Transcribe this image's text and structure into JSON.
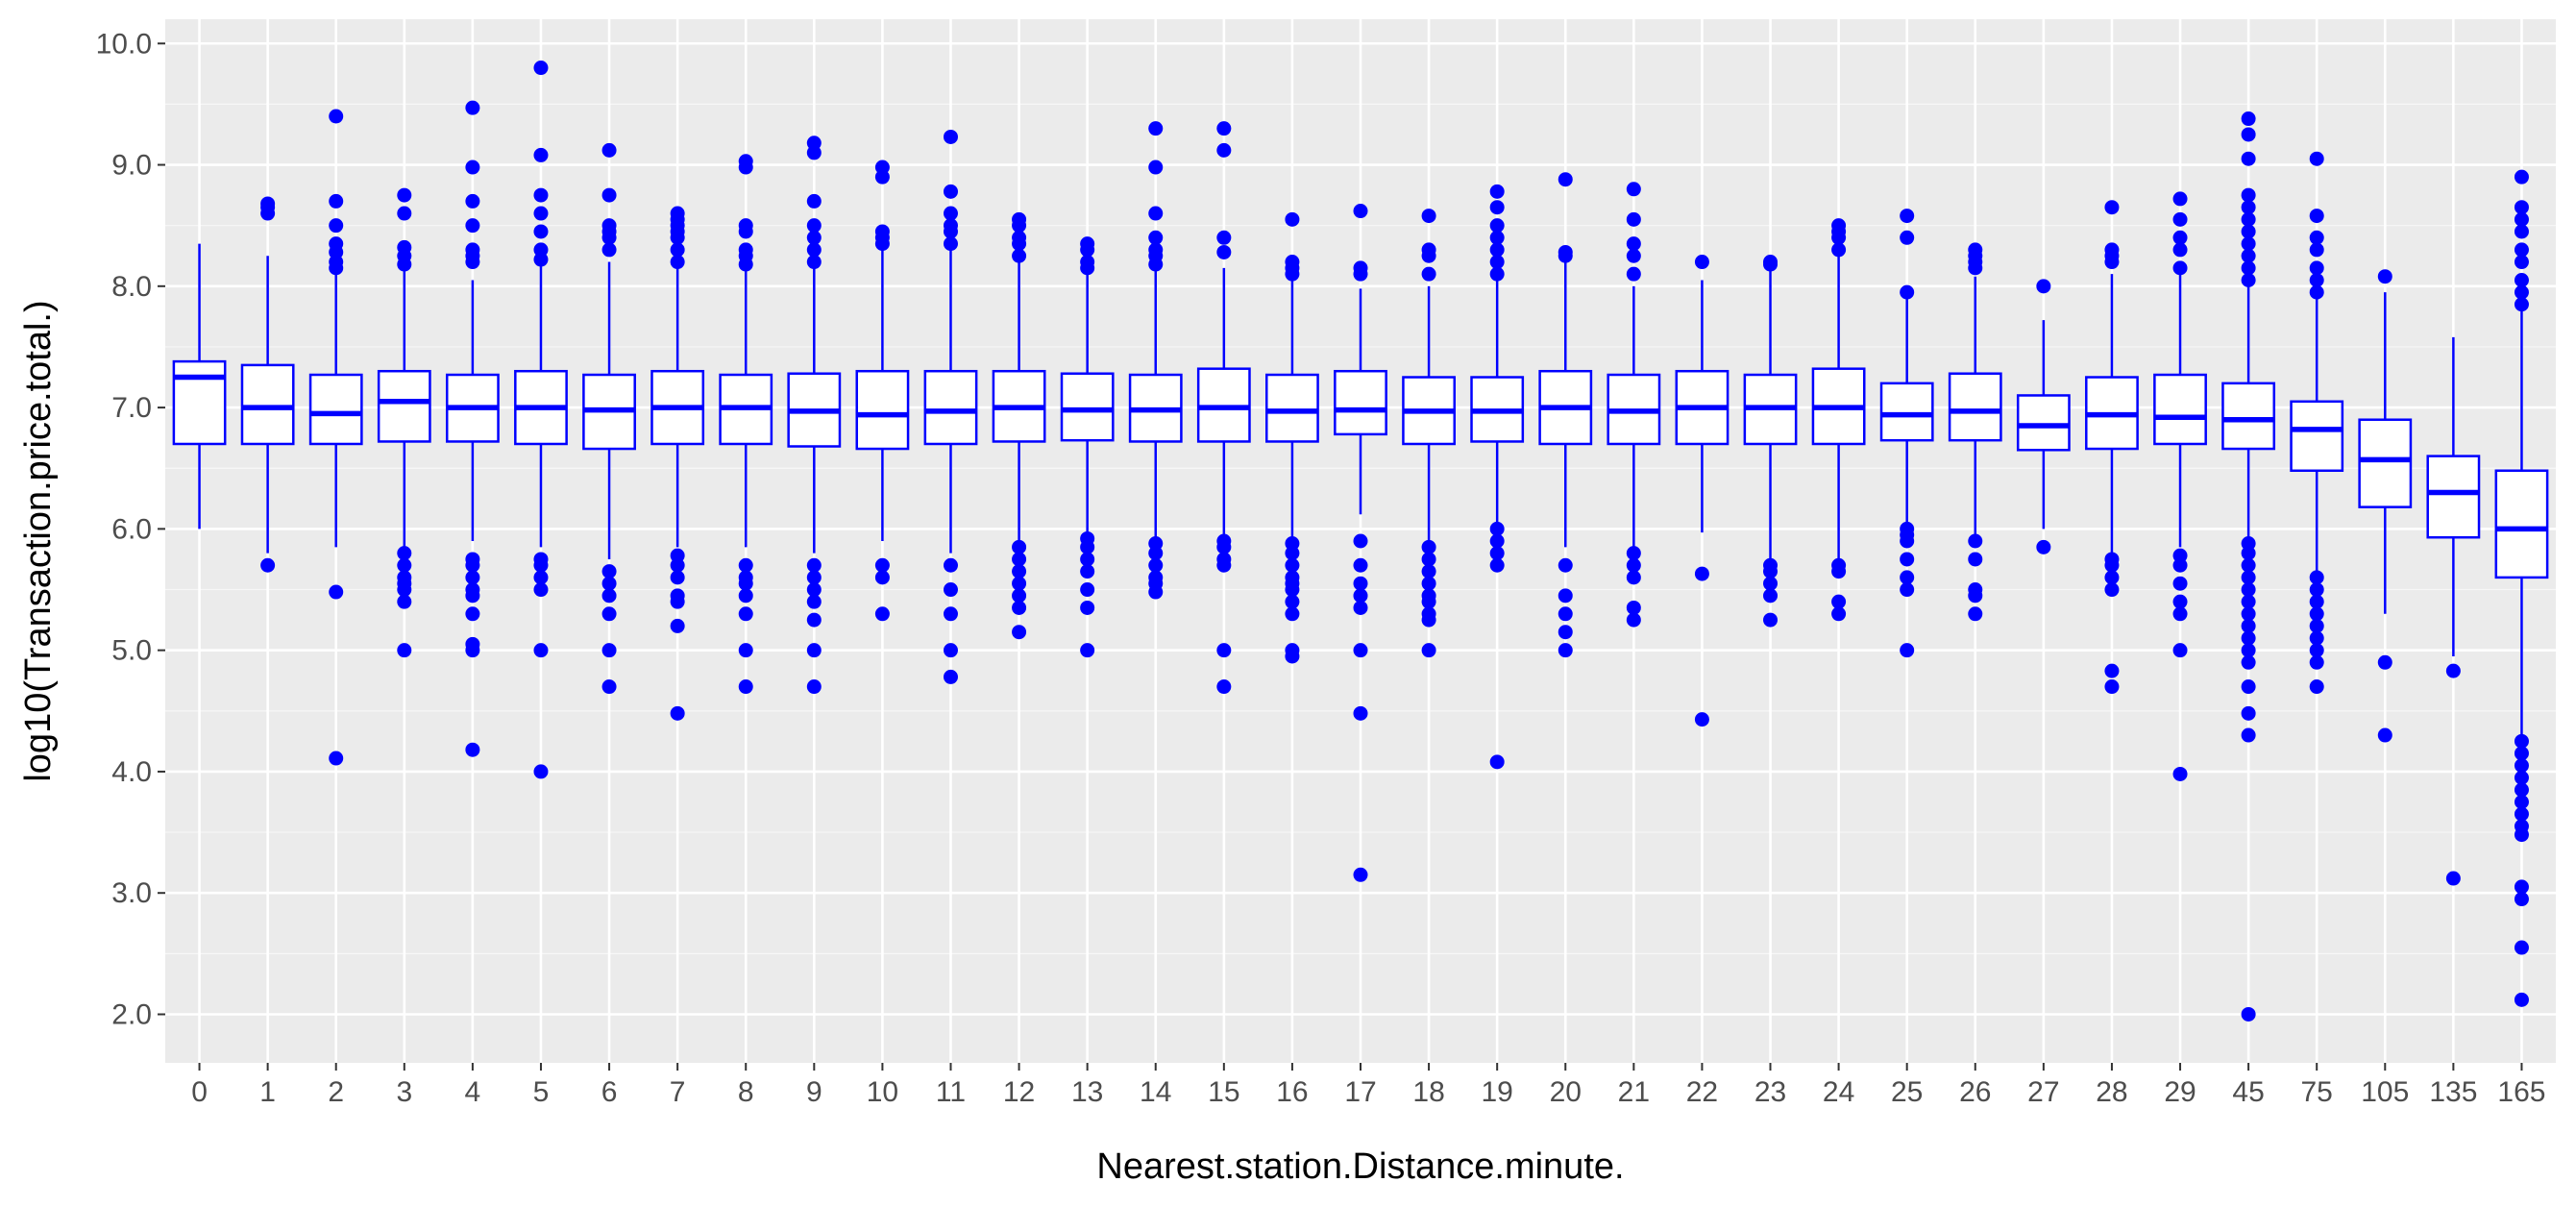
{
  "chart_data": {
    "type": "boxplot",
    "title": "",
    "xlabel": "Nearest.station.Distance.minute.",
    "ylabel": "log10(Transaction.price.total.)",
    "ylim": [
      1.6,
      10.2
    ],
    "yticks": [
      2.0,
      3.0,
      4.0,
      5.0,
      6.0,
      7.0,
      8.0,
      9.0,
      10.0
    ],
    "ytick_labels": [
      "2.0",
      "3.0",
      "4.0",
      "5.0",
      "6.0",
      "7.0",
      "8.0",
      "9.0",
      "10.0"
    ],
    "grid": true,
    "legend": "none",
    "colors": {
      "box": "#0000ff",
      "panel": "#ebebeb",
      "grid_major": "#ffffff",
      "grid_minor": "#f5f5f5",
      "tick_text": "#4d4d4d",
      "axis_text": "#000000"
    },
    "categories": [
      "0",
      "1",
      "2",
      "3",
      "4",
      "5",
      "6",
      "7",
      "8",
      "9",
      "10",
      "11",
      "12",
      "13",
      "14",
      "15",
      "16",
      "17",
      "18",
      "19",
      "20",
      "21",
      "22",
      "23",
      "24",
      "25",
      "26",
      "27",
      "28",
      "29",
      "45",
      "75",
      "105",
      "135",
      "165"
    ],
    "boxes": [
      {
        "q1": 6.7,
        "median": 7.25,
        "q3": 7.38,
        "whisker_low": 6.0,
        "whisker_high": 8.35,
        "outliers": []
      },
      {
        "q1": 6.7,
        "median": 7.0,
        "q3": 7.35,
        "whisker_low": 5.8,
        "whisker_high": 8.25,
        "outliers": [
          5.7,
          8.6,
          8.65,
          8.68
        ]
      },
      {
        "q1": 6.7,
        "median": 6.95,
        "q3": 7.27,
        "whisker_low": 5.85,
        "whisker_high": 8.1,
        "outliers": [
          4.11,
          5.48,
          8.15,
          8.2,
          8.28,
          8.35,
          8.5,
          8.7,
          9.4
        ]
      },
      {
        "q1": 6.72,
        "median": 7.05,
        "q3": 7.3,
        "whisker_low": 5.85,
        "whisker_high": 8.15,
        "outliers": [
          5.0,
          5.4,
          5.5,
          5.55,
          5.6,
          5.7,
          5.8,
          8.18,
          8.25,
          8.32,
          8.6,
          8.75
        ]
      },
      {
        "q1": 6.72,
        "median": 7.0,
        "q3": 7.27,
        "whisker_low": 5.9,
        "whisker_high": 8.05,
        "outliers": [
          4.18,
          5.0,
          5.05,
          5.3,
          5.45,
          5.5,
          5.6,
          5.7,
          5.75,
          8.2,
          8.25,
          8.3,
          8.5,
          8.7,
          8.98,
          9.47
        ]
      },
      {
        "q1": 6.7,
        "median": 7.0,
        "q3": 7.3,
        "whisker_low": 5.85,
        "whisker_high": 8.2,
        "outliers": [
          4.0,
          5.0,
          5.5,
          5.6,
          5.7,
          5.75,
          8.22,
          8.3,
          8.45,
          8.6,
          8.75,
          9.08,
          9.8
        ]
      },
      {
        "q1": 6.66,
        "median": 6.98,
        "q3": 7.27,
        "whisker_low": 5.75,
        "whisker_high": 8.2,
        "outliers": [
          4.7,
          5.0,
          5.3,
          5.45,
          5.55,
          5.65,
          8.3,
          8.4,
          8.45,
          8.5,
          8.75,
          9.12
        ]
      },
      {
        "q1": 6.7,
        "median": 7.0,
        "q3": 7.3,
        "whisker_low": 5.85,
        "whisker_high": 8.2,
        "outliers": [
          4.48,
          5.2,
          5.4,
          5.45,
          5.6,
          5.7,
          5.78,
          8.2,
          8.3,
          8.4,
          8.45,
          8.5,
          8.55,
          8.6
        ]
      },
      {
        "q1": 6.7,
        "median": 7.0,
        "q3": 7.27,
        "whisker_low": 5.85,
        "whisker_high": 8.15,
        "outliers": [
          4.7,
          5.0,
          5.3,
          5.45,
          5.55,
          5.6,
          5.7,
          8.18,
          8.25,
          8.3,
          8.45,
          8.5,
          8.98,
          9.03
        ]
      },
      {
        "q1": 6.68,
        "median": 6.97,
        "q3": 7.28,
        "whisker_low": 5.8,
        "whisker_high": 8.15,
        "outliers": [
          4.7,
          5.0,
          5.25,
          5.4,
          5.5,
          5.6,
          5.7,
          8.2,
          8.3,
          8.4,
          8.5,
          8.7,
          9.1,
          9.18
        ]
      },
      {
        "q1": 6.66,
        "median": 6.94,
        "q3": 7.3,
        "whisker_low": 5.9,
        "whisker_high": 8.3,
        "outliers": [
          5.3,
          5.6,
          5.7,
          8.35,
          8.4,
          8.45,
          8.9,
          8.98
        ]
      },
      {
        "q1": 6.7,
        "median": 6.97,
        "q3": 7.3,
        "whisker_low": 5.8,
        "whisker_high": 8.3,
        "outliers": [
          4.78,
          5.0,
          5.3,
          5.5,
          5.7,
          8.35,
          8.45,
          8.5,
          8.6,
          8.78,
          9.23
        ]
      },
      {
        "q1": 6.72,
        "median": 7.0,
        "q3": 7.3,
        "whisker_low": 5.85,
        "whisker_high": 8.2,
        "outliers": [
          5.15,
          5.35,
          5.45,
          5.55,
          5.65,
          5.75,
          5.85,
          8.25,
          8.35,
          8.4,
          8.5,
          8.55
        ]
      },
      {
        "q1": 6.73,
        "median": 6.98,
        "q3": 7.28,
        "whisker_low": 5.95,
        "whisker_high": 8.1,
        "outliers": [
          5.0,
          5.35,
          5.5,
          5.65,
          5.75,
          5.85,
          5.92,
          8.15,
          8.2,
          8.3,
          8.35
        ]
      },
      {
        "q1": 6.72,
        "median": 6.98,
        "q3": 7.27,
        "whisker_low": 5.9,
        "whisker_high": 8.15,
        "outliers": [
          5.48,
          5.55,
          5.6,
          5.7,
          5.8,
          5.88,
          8.18,
          8.25,
          8.3,
          8.4,
          8.6,
          8.98,
          9.3
        ]
      },
      {
        "q1": 6.72,
        "median": 7.0,
        "q3": 7.32,
        "whisker_low": 5.92,
        "whisker_high": 8.15,
        "outliers": [
          4.7,
          5.0,
          5.7,
          5.75,
          5.85,
          5.9,
          8.28,
          8.4,
          9.12,
          9.3
        ]
      },
      {
        "q1": 6.72,
        "median": 6.97,
        "q3": 7.27,
        "whisker_low": 5.9,
        "whisker_high": 8.05,
        "outliers": [
          4.95,
          5.0,
          5.3,
          5.4,
          5.5,
          5.55,
          5.6,
          5.7,
          5.8,
          5.88,
          8.1,
          8.15,
          8.2,
          8.55
        ]
      },
      {
        "q1": 6.78,
        "median": 6.98,
        "q3": 7.3,
        "whisker_low": 6.12,
        "whisker_high": 7.98,
        "outliers": [
          3.15,
          4.48,
          5.0,
          5.35,
          5.45,
          5.55,
          5.7,
          5.9,
          8.1,
          8.15,
          8.62
        ]
      },
      {
        "q1": 6.7,
        "median": 6.97,
        "q3": 7.25,
        "whisker_low": 5.9,
        "whisker_high": 8.0,
        "outliers": [
          5.0,
          5.25,
          5.3,
          5.4,
          5.45,
          5.55,
          5.65,
          5.75,
          5.85,
          8.1,
          8.25,
          8.3,
          8.58
        ]
      },
      {
        "q1": 6.72,
        "median": 6.97,
        "q3": 7.25,
        "whisker_low": 6.0,
        "whisker_high": 8.05,
        "outliers": [
          4.08,
          5.7,
          5.8,
          5.9,
          6.0,
          8.1,
          8.2,
          8.3,
          8.4,
          8.5,
          8.65,
          8.78
        ]
      },
      {
        "q1": 6.7,
        "median": 7.0,
        "q3": 7.3,
        "whisker_low": 5.85,
        "whisker_high": 8.2,
        "outliers": [
          5.0,
          5.15,
          5.3,
          5.45,
          5.7,
          8.25,
          8.28,
          8.88
        ]
      },
      {
        "q1": 6.7,
        "median": 6.97,
        "q3": 7.27,
        "whisker_low": 5.85,
        "whisker_high": 8.0,
        "outliers": [
          5.25,
          5.35,
          5.6,
          5.7,
          5.8,
          8.1,
          8.25,
          8.35,
          8.55,
          8.8
        ]
      },
      {
        "q1": 6.7,
        "median": 7.0,
        "q3": 7.3,
        "whisker_low": 5.97,
        "whisker_high": 8.05,
        "outliers": [
          4.43,
          5.63,
          8.2
        ]
      },
      {
        "q1": 6.7,
        "median": 7.0,
        "q3": 7.27,
        "whisker_low": 5.75,
        "whisker_high": 8.15,
        "outliers": [
          5.25,
          5.45,
          5.55,
          5.65,
          5.7,
          8.18,
          8.2
        ]
      },
      {
        "q1": 6.7,
        "median": 7.0,
        "q3": 7.32,
        "whisker_low": 5.75,
        "whisker_high": 8.25,
        "outliers": [
          5.3,
          5.4,
          5.65,
          5.7,
          8.3,
          8.4,
          8.45,
          8.5
        ]
      },
      {
        "q1": 6.73,
        "median": 6.94,
        "q3": 7.2,
        "whisker_low": 6.05,
        "whisker_high": 7.9,
        "outliers": [
          5.0,
          5.5,
          5.6,
          5.75,
          5.9,
          5.95,
          6.0,
          7.95,
          8.4,
          8.58
        ]
      },
      {
        "q1": 6.73,
        "median": 6.97,
        "q3": 7.28,
        "whisker_low": 5.95,
        "whisker_high": 8.08,
        "outliers": [
          5.3,
          5.45,
          5.5,
          5.75,
          5.9,
          8.15,
          8.2,
          8.25,
          8.3
        ]
      },
      {
        "q1": 6.65,
        "median": 6.85,
        "q3": 7.1,
        "whisker_low": 6.0,
        "whisker_high": 7.72,
        "outliers": [
          5.85,
          8.0
        ]
      },
      {
        "q1": 6.66,
        "median": 6.94,
        "q3": 7.25,
        "whisker_low": 5.8,
        "whisker_high": 8.1,
        "outliers": [
          4.7,
          4.83,
          5.5,
          5.6,
          5.7,
          5.75,
          8.2,
          8.25,
          8.3,
          8.65
        ]
      },
      {
        "q1": 6.7,
        "median": 6.92,
        "q3": 7.27,
        "whisker_low": 5.85,
        "whisker_high": 8.1,
        "outliers": [
          3.98,
          5.0,
          5.3,
          5.4,
          5.55,
          5.7,
          5.78,
          8.15,
          8.3,
          8.4,
          8.55,
          8.72
        ]
      },
      {
        "q1": 6.66,
        "median": 6.9,
        "q3": 7.2,
        "whisker_low": 5.9,
        "whisker_high": 8.0,
        "outliers": [
          2.0,
          4.3,
          4.48,
          4.7,
          4.9,
          5.0,
          5.1,
          5.2,
          5.3,
          5.4,
          5.5,
          5.6,
          5.7,
          5.8,
          5.88,
          8.05,
          8.15,
          8.25,
          8.35,
          8.45,
          8.55,
          8.65,
          8.75,
          9.05,
          9.25,
          9.38
        ]
      },
      {
        "q1": 6.48,
        "median": 6.82,
        "q3": 7.05,
        "whisker_low": 5.65,
        "whisker_high": 7.9,
        "outliers": [
          4.7,
          4.9,
          5.0,
          5.1,
          5.2,
          5.3,
          5.4,
          5.5,
          5.6,
          7.95,
          8.05,
          8.15,
          8.3,
          8.4,
          8.58,
          9.05
        ]
      },
      {
        "q1": 6.18,
        "median": 6.57,
        "q3": 6.9,
        "whisker_low": 5.3,
        "whisker_high": 7.95,
        "outliers": [
          4.3,
          4.9,
          8.08
        ]
      },
      {
        "q1": 5.93,
        "median": 6.3,
        "q3": 6.6,
        "whisker_low": 4.95,
        "whisker_high": 7.58,
        "outliers": [
          3.12,
          4.83
        ]
      },
      {
        "q1": 5.6,
        "median": 6.0,
        "q3": 6.48,
        "whisker_low": 4.3,
        "whisker_high": 7.8,
        "outliers": [
          2.12,
          2.55,
          2.95,
          3.05,
          3.48,
          3.55,
          3.65,
          3.75,
          3.85,
          3.95,
          4.05,
          4.15,
          4.25,
          7.85,
          7.95,
          8.05,
          8.2,
          8.3,
          8.45,
          8.55,
          8.65,
          8.9
        ]
      }
    ]
  }
}
